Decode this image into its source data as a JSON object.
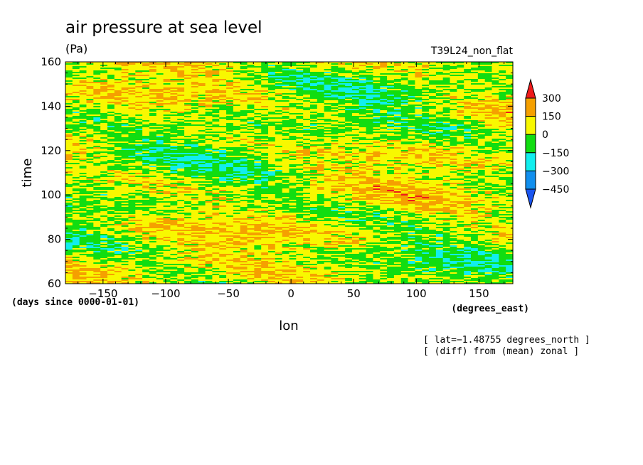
{
  "chart_data": {
    "type": "heatmap",
    "title": "air pressure at sea level",
    "units": "(Pa)",
    "run_label": "T39L24_non_flat",
    "xlabel": "lon",
    "x_units": "(degrees_east)",
    "ylabel": "time",
    "y_units": "(days since 0000-01-01)",
    "xlim": [
      -180,
      177
    ],
    "ylim": [
      60,
      160
    ],
    "x_ticks": [
      -150,
      -100,
      -50,
      0,
      50,
      100,
      150
    ],
    "x_tick_labels": [
      "−150",
      "−100",
      "−50",
      "0",
      "50",
      "100",
      "150"
    ],
    "y_ticks": [
      60,
      80,
      100,
      120,
      140,
      160
    ],
    "y_tick_labels": [
      "60",
      "80",
      "100",
      "120",
      "140",
      "160"
    ],
    "notes": [
      "[ lat=−1.48755 degrees_north ]",
      "[ (diff) from (mean) zonal ]"
    ],
    "colorbar": {
      "levels": [
        300,
        150,
        0,
        -150,
        -300,
        -450
      ],
      "labels": [
        "300",
        "150",
        "0",
        "−150",
        "−300",
        "−450"
      ],
      "colors": [
        "#ee1a1a",
        "#f5a000",
        "#f8f800",
        "#11dd11",
        "#11eeee",
        "#118fee",
        "#1a55f0"
      ],
      "extend": "both"
    }
  }
}
